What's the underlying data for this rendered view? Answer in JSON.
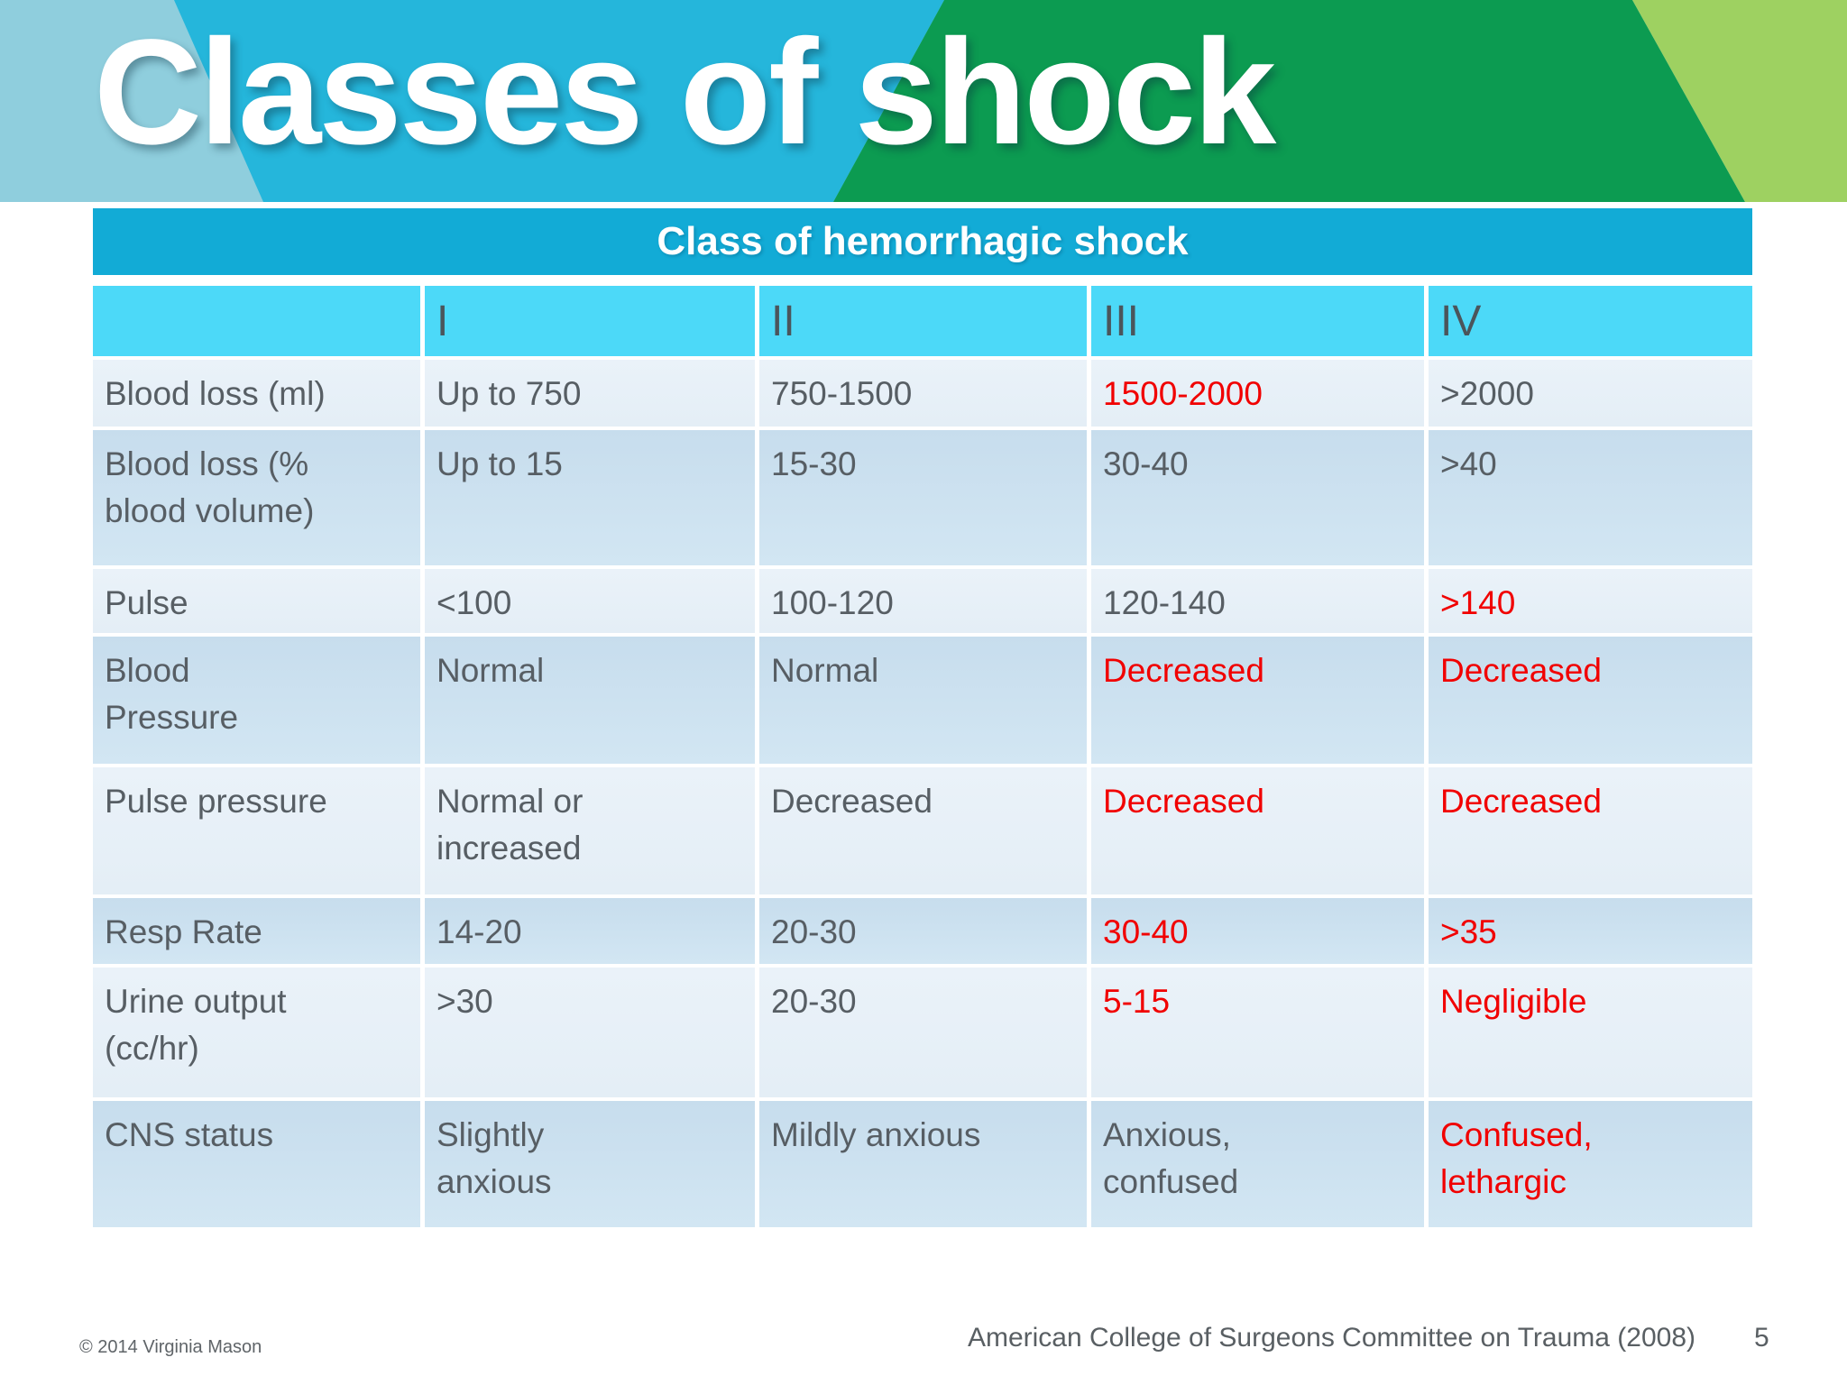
{
  "slide": {
    "title": "Classes of shock",
    "page_number": "5",
    "footer_left": "© 2014 Virginia Mason",
    "footer_center": "American College of Surgeons Committee on Trauma (2008)"
  },
  "table": {
    "title": "Class of hemorrhagic shock",
    "columns": [
      "",
      "I",
      "II",
      "III",
      "IV"
    ],
    "rows": [
      {
        "label": "Blood loss (ml)",
        "values": [
          {
            "t": "Up to 750",
            "red": false
          },
          {
            "t": "750-1500",
            "red": false
          },
          {
            "t": "1500-2000",
            "red": true
          },
          {
            "t": ">2000",
            "red": false
          }
        ]
      },
      {
        "label": "Blood loss (%\nblood volume)",
        "values": [
          {
            "t": "Up to 15",
            "red": false
          },
          {
            "t": "15-30",
            "red": false
          },
          {
            "t": "30-40",
            "red": false
          },
          {
            "t": ">40",
            "red": false
          }
        ]
      },
      {
        "label": "Pulse",
        "values": [
          {
            "t": "<100",
            "red": false
          },
          {
            "t": "100-120",
            "red": false
          },
          {
            "t": "120-140",
            "red": false
          },
          {
            "t": ">140",
            "red": true
          }
        ]
      },
      {
        "label": "Blood\nPressure",
        "values": [
          {
            "t": "Normal",
            "red": false
          },
          {
            "t": "Normal",
            "red": false
          },
          {
            "t": "Decreased",
            "red": true
          },
          {
            "t": "Decreased",
            "red": true
          }
        ]
      },
      {
        "label": "Pulse pressure",
        "values": [
          {
            "t": "Normal or\nincreased",
            "red": false
          },
          {
            "t": "Decreased",
            "red": false
          },
          {
            "t": "Decreased",
            "red": true
          },
          {
            "t": "Decreased",
            "red": true
          }
        ]
      },
      {
        "label": "Resp Rate",
        "values": [
          {
            "t": "14-20",
            "red": false
          },
          {
            "t": "20-30",
            "red": false
          },
          {
            "t": "30-40",
            "red": true
          },
          {
            "t": ">35",
            "red": true
          }
        ]
      },
      {
        "label": "Urine output\n(cc/hr)",
        "values": [
          {
            "t": ">30",
            "red": false
          },
          {
            "t": "20-30",
            "red": false
          },
          {
            "t": "5-15",
            "red": true
          },
          {
            "t": "Negligible",
            "red": true
          }
        ]
      },
      {
        "label": "CNS status",
        "values": [
          {
            "t": "Slightly\nanxious",
            "red": false
          },
          {
            "t": "Mildly anxious",
            "red": false
          },
          {
            "t": "Anxious,\nconfused",
            "red": false
          },
          {
            "t": "Confused,\nlethargic",
            "red": true
          }
        ]
      }
    ]
  },
  "colors": {
    "banner_light_blue": "#8FCEDD",
    "banner_blue": "#25B6DB",
    "banner_dark_green": "#0C9B51",
    "banner_light_green": "#9ED161",
    "table_title_bar": "#12ABD6",
    "column_header_row": "#4CD9F8",
    "row_light": "#E9F2F9",
    "row_dark": "#CBE1F0",
    "text_gray": "#575E64",
    "alert_red": "#F10000"
  }
}
